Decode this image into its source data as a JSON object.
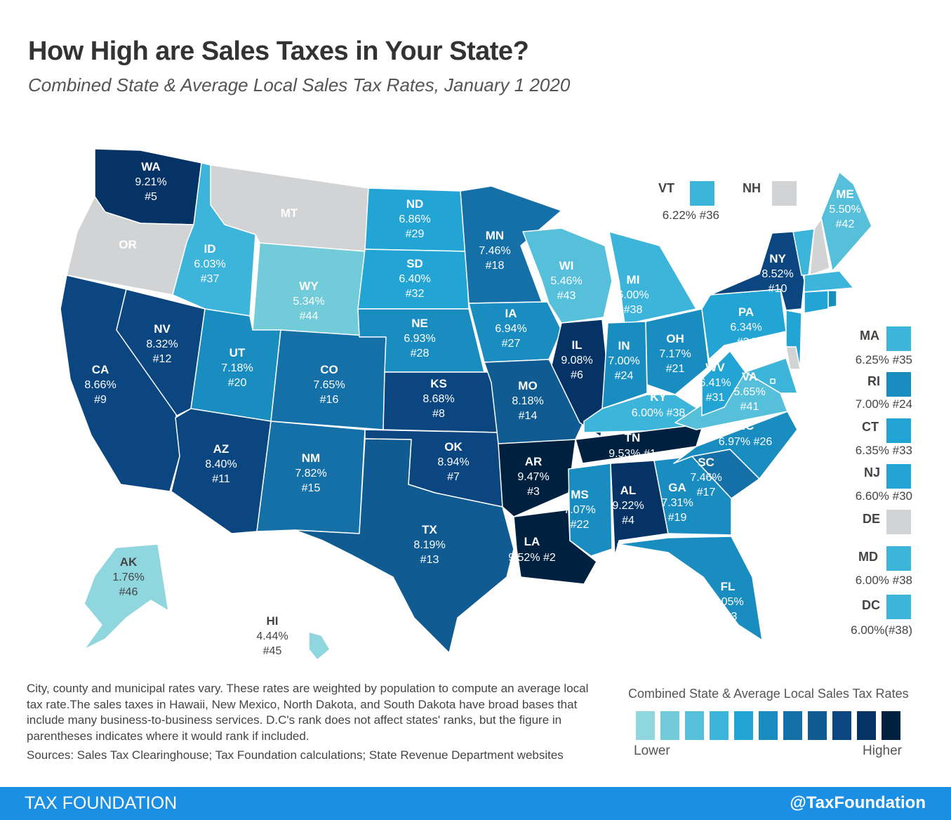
{
  "title": "How High are Sales Taxes in Your State?",
  "subtitle": "Combined State & Average Local Sales Tax Rates, January 1 2020",
  "colors": {
    "no_tax": "#d1d3d5",
    "scale": [
      "#8fd6de",
      "#72cbd9",
      "#56c0da",
      "#3db4d9",
      "#22a4d4",
      "#1a8dc0",
      "#1570a8",
      "#0f5b92",
      "#0b4680",
      "#053366",
      "#00203f"
    ],
    "footer": "#1a8fe3"
  },
  "states": [
    {
      "abbr": "WA",
      "rate": "9.21%",
      "rank": "#5"
    },
    {
      "abbr": "OR",
      "rate": "",
      "rank": ""
    },
    {
      "abbr": "MT",
      "rate": "",
      "rank": ""
    },
    {
      "abbr": "CA",
      "rate": "8.66%",
      "rank": "#9"
    },
    {
      "abbr": "NV",
      "rate": "8.32%",
      "rank": "#12"
    },
    {
      "abbr": "ID",
      "rate": "6.03%",
      "rank": "#37"
    },
    {
      "abbr": "WY",
      "rate": "5.34%",
      "rank": "#44"
    },
    {
      "abbr": "UT",
      "rate": "7.18%",
      "rank": "#20"
    },
    {
      "abbr": "CO",
      "rate": "7.65%",
      "rank": "#16"
    },
    {
      "abbr": "AZ",
      "rate": "8.40%",
      "rank": "#11"
    },
    {
      "abbr": "NM",
      "rate": "7.82%",
      "rank": "#15"
    },
    {
      "abbr": "ND",
      "rate": "6.86%",
      "rank": "#29"
    },
    {
      "abbr": "SD",
      "rate": "6.40%",
      "rank": "#32"
    },
    {
      "abbr": "NE",
      "rate": "6.93%",
      "rank": "#28"
    },
    {
      "abbr": "KS",
      "rate": "8.68%",
      "rank": "#8"
    },
    {
      "abbr": "OK",
      "rate": "8.94%",
      "rank": "#7"
    },
    {
      "abbr": "TX",
      "rate": "8.19%",
      "rank": "#13"
    },
    {
      "abbr": "MN",
      "rate": "7.46%",
      "rank": "#18"
    },
    {
      "abbr": "IA",
      "rate": "6.94%",
      "rank": "#27"
    },
    {
      "abbr": "MO",
      "rate": "8.18%",
      "rank": "#14"
    },
    {
      "abbr": "AR",
      "rate": "9.47%",
      "rank": "#3"
    },
    {
      "abbr": "LA",
      "rate": "9.52%",
      "rank": "#2"
    },
    {
      "abbr": "WI",
      "rate": "5.46%",
      "rank": "#43"
    },
    {
      "abbr": "IL",
      "rate": "9.08%",
      "rank": "#6"
    },
    {
      "abbr": "MI",
      "rate": "6.00%",
      "rank": "#38"
    },
    {
      "abbr": "IN",
      "rate": "7.00%",
      "rank": "#24"
    },
    {
      "abbr": "OH",
      "rate": "7.17%",
      "rank": "#21"
    },
    {
      "abbr": "KY",
      "rate": "6.00%",
      "rank": "#38"
    },
    {
      "abbr": "TN",
      "rate": "9.53%",
      "rank": "#1"
    },
    {
      "abbr": "MS",
      "rate": "7.07%",
      "rank": "#22"
    },
    {
      "abbr": "AL",
      "rate": "9.22%",
      "rank": "#4"
    },
    {
      "abbr": "GA",
      "rate": "7.31%",
      "rank": "#19"
    },
    {
      "abbr": "FL",
      "rate": "7.05%",
      "rank": "#23"
    },
    {
      "abbr": "SC",
      "rate": "7.46%",
      "rank": "#17"
    },
    {
      "abbr": "NC",
      "rate": "6.97%",
      "rank": "#26"
    },
    {
      "abbr": "VA",
      "rate": "5.65%",
      "rank": "#41"
    },
    {
      "abbr": "WV",
      "rate": "6.41%",
      "rank": "#31"
    },
    {
      "abbr": "PA",
      "rate": "6.34%",
      "rank": "#34"
    },
    {
      "abbr": "NY",
      "rate": "8.52%",
      "rank": "#10"
    },
    {
      "abbr": "ME",
      "rate": "5.50%",
      "rank": "#42"
    },
    {
      "abbr": "AK",
      "rate": "1.76%",
      "rank": "#46"
    },
    {
      "abbr": "HI",
      "rate": "4.44%",
      "rank": "#45"
    },
    {
      "abbr": "VT",
      "rate": "6.22%",
      "rank": "#36"
    },
    {
      "abbr": "NH",
      "rate": "",
      "rank": ""
    },
    {
      "abbr": "MA",
      "rate": "6.25%",
      "rank": "#35"
    },
    {
      "abbr": "RI",
      "rate": "7.00%",
      "rank": "#24"
    },
    {
      "abbr": "CT",
      "rate": "6.35%",
      "rank": "#33"
    },
    {
      "abbr": "NJ",
      "rate": "6.60%",
      "rank": "#30"
    },
    {
      "abbr": "DE",
      "rate": "",
      "rank": ""
    },
    {
      "abbr": "MD",
      "rate": "6.00%",
      "rank": "#38"
    },
    {
      "abbr": "DC",
      "rate": "6.00%",
      "rank": "(#38)"
    }
  ],
  "note": "City, county and municipal rates vary. These rates are weighted by population to compute an average local tax rate.The sales taxes in Hawaii, New Mexico, North Dakota, and South Dakota have broad bases that include many business-to-business services. D.C's rank does not affect states' ranks, but the figure in parentheses indicates where it would rank if included.",
  "sources": "Sources: Sales Tax Clearinghouse; Tax Foundation calculations; State Revenue Department websites",
  "scale_legend": {
    "title": "Combined State & Average Local Sales Tax Rates",
    "low": "Lower",
    "high": "Higher"
  },
  "footer": {
    "brand": "TAX FOUNDATION",
    "handle": "@TaxFoundation"
  }
}
